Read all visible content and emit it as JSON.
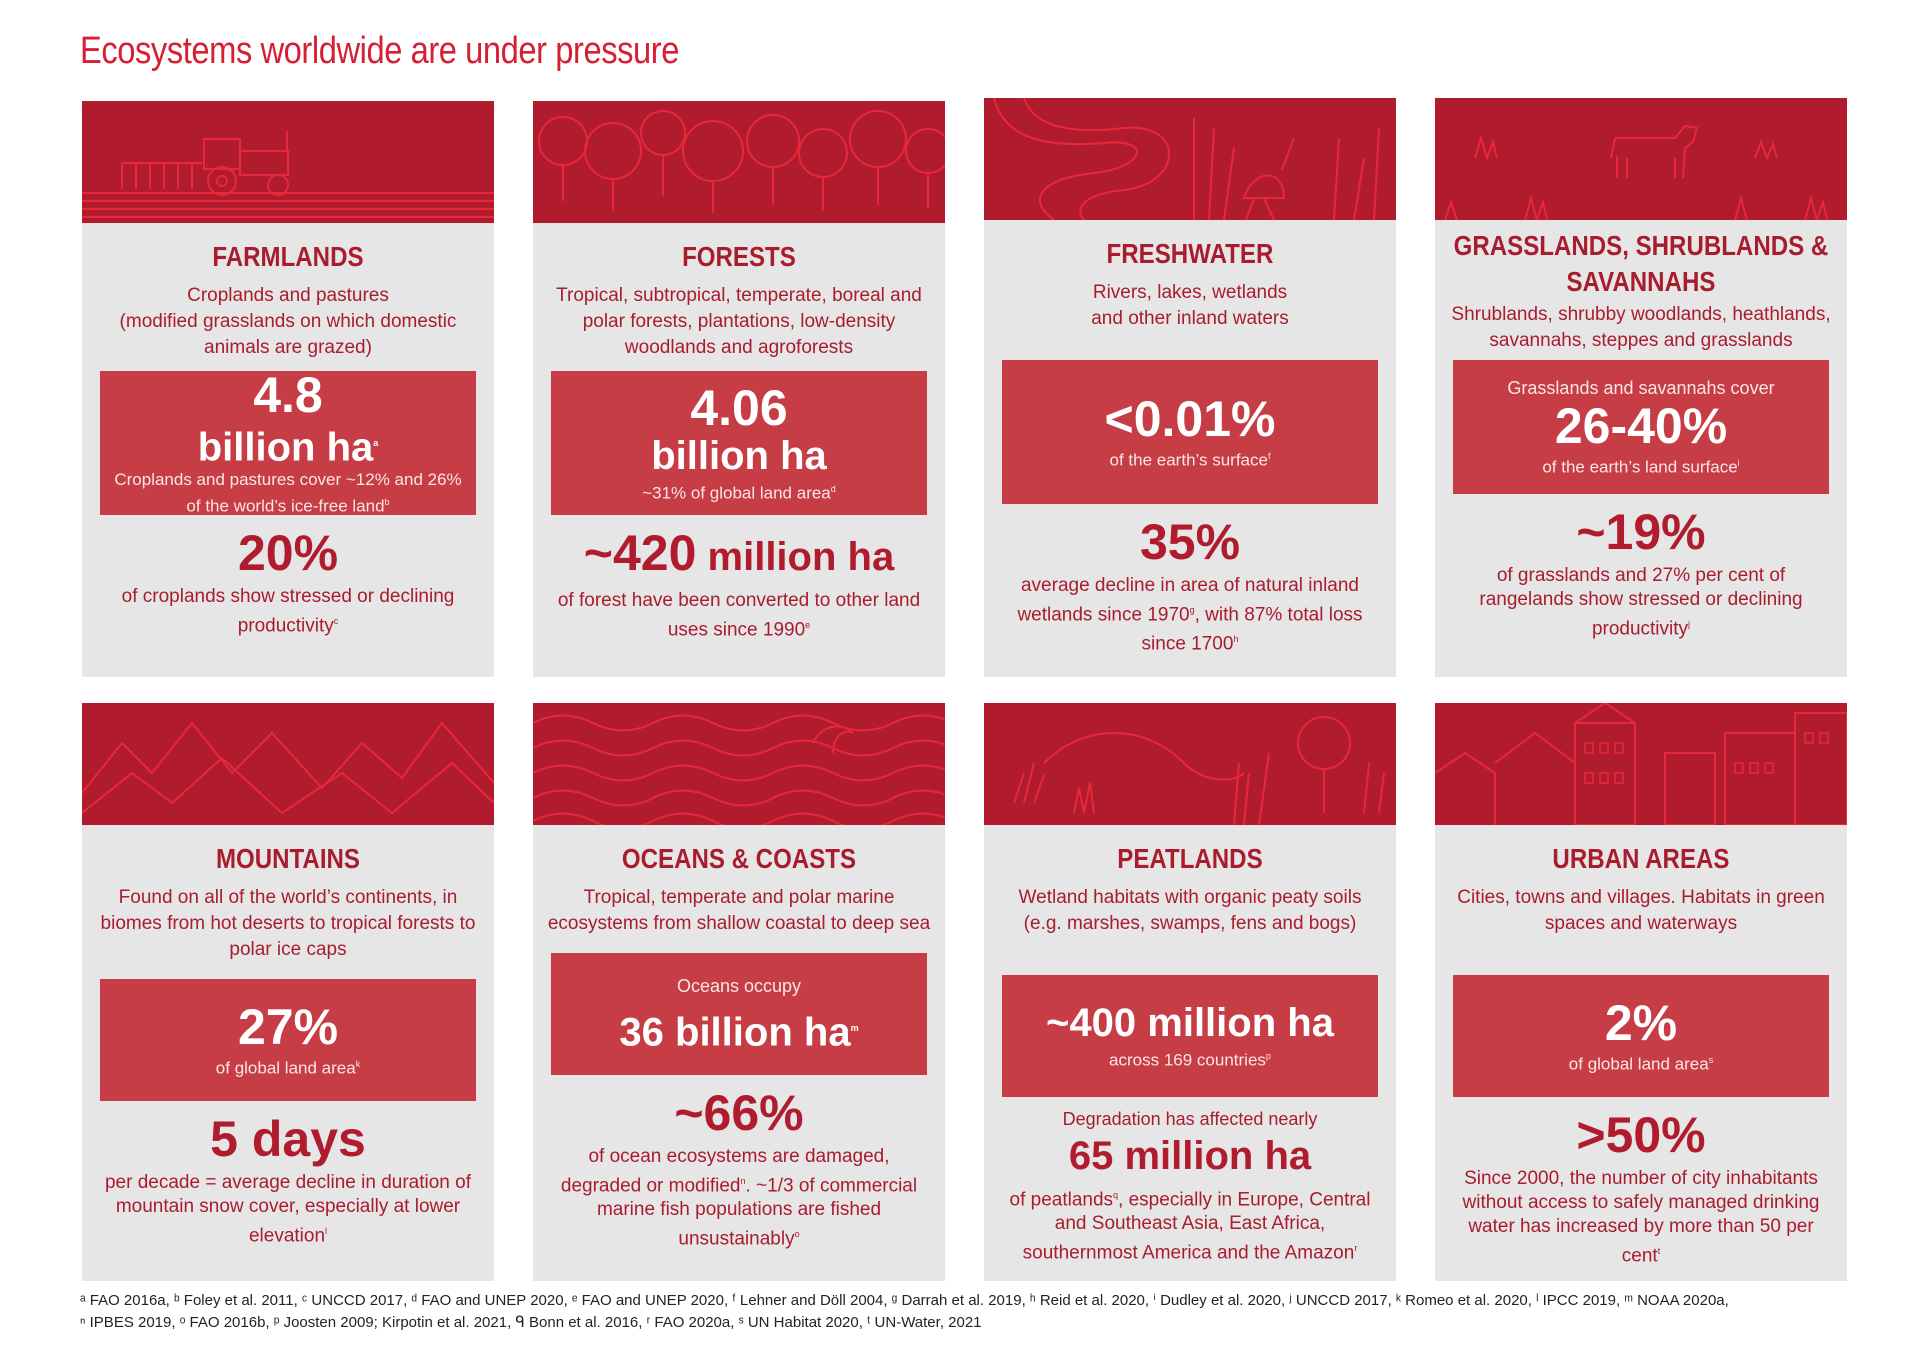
{
  "title": "Ecosystems worldwide are under pressure",
  "colors": {
    "banner": "#b01c2e",
    "accent": "#c73d45",
    "card_bg": "#e6e6e6",
    "title": "#d61f32"
  },
  "cards": [
    {
      "icon": "tractor-field-icon",
      "heading": "FARMLANDS",
      "desc": "Croplands and pastures\n(modified grasslands on which domestic animals are grazed)",
      "box_value": "4.8",
      "box_value2": "billion ha",
      "box_value2_sup": "a",
      "box_sub": "Croplands and pastures cover ~12% and 26% of the world’s ice-free land",
      "box_sub_sup": "b",
      "stat": "20%",
      "stat_desc": "of croplands show stressed or declining productivity",
      "stat_desc_sup": "c"
    },
    {
      "icon": "trees-icon",
      "heading": "FORESTS",
      "desc": "Tropical, subtropical, temperate, boreal and polar forests,  plantations, low-density woodlands and agroforests",
      "box_value": "4.06",
      "box_value2": "billion ha",
      "box_sub": "~31% of global land area",
      "box_sub_sup": "d",
      "stat": "~420",
      "stat_unit": " million ha",
      "stat_desc": "of forest have been converted to other land uses since 1990",
      "stat_desc_sup": "e"
    },
    {
      "icon": "river-heron-icon",
      "heading": "FRESHWATER",
      "desc": "Rivers, lakes, wetlands\nand other inland waters",
      "box_value": "<0.01%",
      "box_sub": "of the earth’s surface",
      "box_sub_sup": "f",
      "stat": "35%",
      "stat_desc": "average decline in area of natural inland wetlands since 1970",
      "stat_desc_sup": "g",
      "stat_desc_tail": ", with 87% total loss since 1700",
      "stat_desc_tail_sup": "h"
    },
    {
      "icon": "cattle-grass-icon",
      "heading": "GRASSLANDS, SHRUBLANDS & SAVANNAHS",
      "desc": "Shrublands, shrubby woodlands, heathlands, savannahs, steppes and grasslands",
      "box_pre": "Grasslands and savannahs cover",
      "box_value": "26-40%",
      "box_sub": "of the earth’s land surface",
      "box_sub_sup": "i",
      "stat": "~19%",
      "stat_desc": "of grasslands and 27% per cent of rangelands show stressed or declining productivity",
      "stat_desc_sup": "j"
    },
    {
      "icon": "mountains-icon",
      "heading": "MOUNTAINS",
      "desc": "Found on all of the world’s continents, in biomes from hot deserts to tropical forests to polar ice caps",
      "box_value": "27%",
      "box_sub": "of global land area",
      "box_sub_sup": "k",
      "stat": "5 days",
      "stat_desc": "per decade = average decline in duration of mountain snow cover, especially at lower elevation",
      "stat_desc_sup": "l"
    },
    {
      "icon": "waves-whale-icon",
      "heading": "OCEANS & COASTS",
      "desc": "Tropical, temperate and polar marine ecosystems from shallow coastal to deep sea",
      "box_pre": "Oceans occupy",
      "box_value": "36 billion ha",
      "box_value_sup": "m",
      "stat": "~66%",
      "stat_desc": "of ocean ecosystems are damaged, degraded or modified",
      "stat_desc_sup": "n",
      "stat_desc_tail": ". ~1/3 of commercial marine fish populations are fished unsustainably",
      "stat_desc_tail_sup": "o"
    },
    {
      "icon": "wetland-plants-icon",
      "heading": "PEATLANDS",
      "desc": "Wetland habitats with organic peaty soils (e.g. marshes, swamps, fens and bogs)",
      "box_value": "~400 million ha",
      "box_sub": "across 169 countries",
      "box_sub_sup": "p",
      "stat_pre": "Degradation has affected nearly",
      "stat": "65 million ha",
      "stat_desc": "of peatlands",
      "stat_desc_sup": "q",
      "stat_desc_tail": ", especially in Europe, Central and Southeast Asia, East Africa, southernmost America and the Amazon",
      "stat_desc_tail_sup": "r"
    },
    {
      "icon": "buildings-icon",
      "heading": "URBAN AREAS",
      "desc": "Cities, towns and villages. Habitats in green spaces and waterways",
      "box_value": "2%",
      "box_sub": "of global land area",
      "box_sub_sup": "s",
      "stat": ">50%",
      "stat_desc": "Since 2000, the number of city inhabitants without access to safely managed drinking water has increased by more than 50 per cent",
      "stat_desc_sup": "t"
    }
  ],
  "footnotes": [
    "ᵃ FAO 2016a, ᵇ Foley et al. 2011, ᶜ UNCCD 2017, ᵈ FAO and UNEP 2020, ᵉ FAO and UNEP 2020, ᶠ Lehner and Döll 2004, ᵍ Darrah et al. 2019, ʰ Reid et al. 2020, ⁱ Dudley et al. 2020, ʲ UNCCD 2017, ᵏ Romeo et al. 2020, ˡ IPCC 2019, ᵐ NOAA 2020a,",
    "ⁿ IPBES 2019, ᵒ FAO 2016b, ᵖ Joosten 2009; Kirpotin et al. 2021, ᑫ Bonn et al. 2016, ʳ FAO 2020a, ˢ UN Habitat 2020, ᵗ UN-Water, 2021"
  ]
}
